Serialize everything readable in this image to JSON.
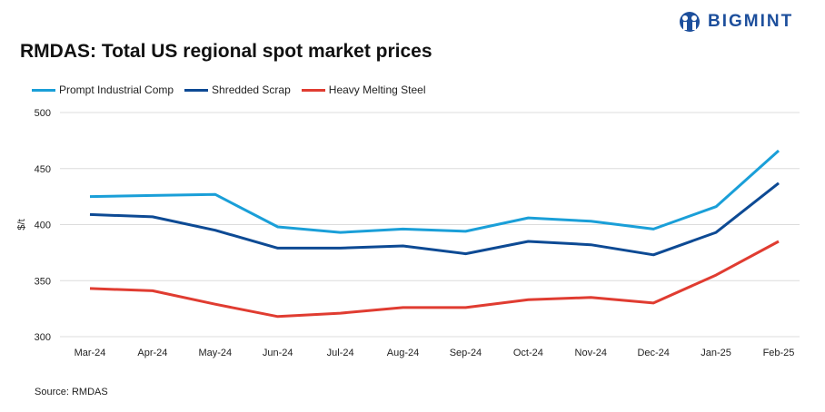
{
  "chart_data": {
    "type": "line",
    "title": "RMDAS: Total US regional spot market prices",
    "ylabel": "$/t",
    "xlabel": "",
    "ylim": [
      300,
      500
    ],
    "yticks": [
      300,
      350,
      400,
      450,
      500
    ],
    "grid": true,
    "legend": "top-left",
    "categories": [
      "Mar-24",
      "Apr-24",
      "May-24",
      "Jun-24",
      "Jul-24",
      "Aug-24",
      "Sep-24",
      "Oct-24",
      "Nov-24",
      "Dec-24",
      "Jan-25",
      "Feb-25"
    ],
    "series": [
      {
        "name": "Prompt Industrial Comp",
        "color": "#1a9fd8",
        "values": [
          425,
          426,
          427,
          398,
          393,
          396,
          394,
          406,
          403,
          396,
          416,
          466
        ]
      },
      {
        "name": "Shredded Scrap",
        "color": "#0d4a94",
        "values": [
          409,
          407,
          395,
          379,
          379,
          381,
          374,
          385,
          382,
          373,
          393,
          437
        ]
      },
      {
        "name": "Heavy Melting Steel",
        "color": "#e03c31",
        "values": [
          343,
          341,
          329,
          318,
          321,
          326,
          326,
          333,
          335,
          330,
          355,
          385
        ]
      }
    ]
  },
  "source": "Source: RMDAS",
  "logo": {
    "text": "BIGMINT",
    "color": "#1d4f9c"
  }
}
